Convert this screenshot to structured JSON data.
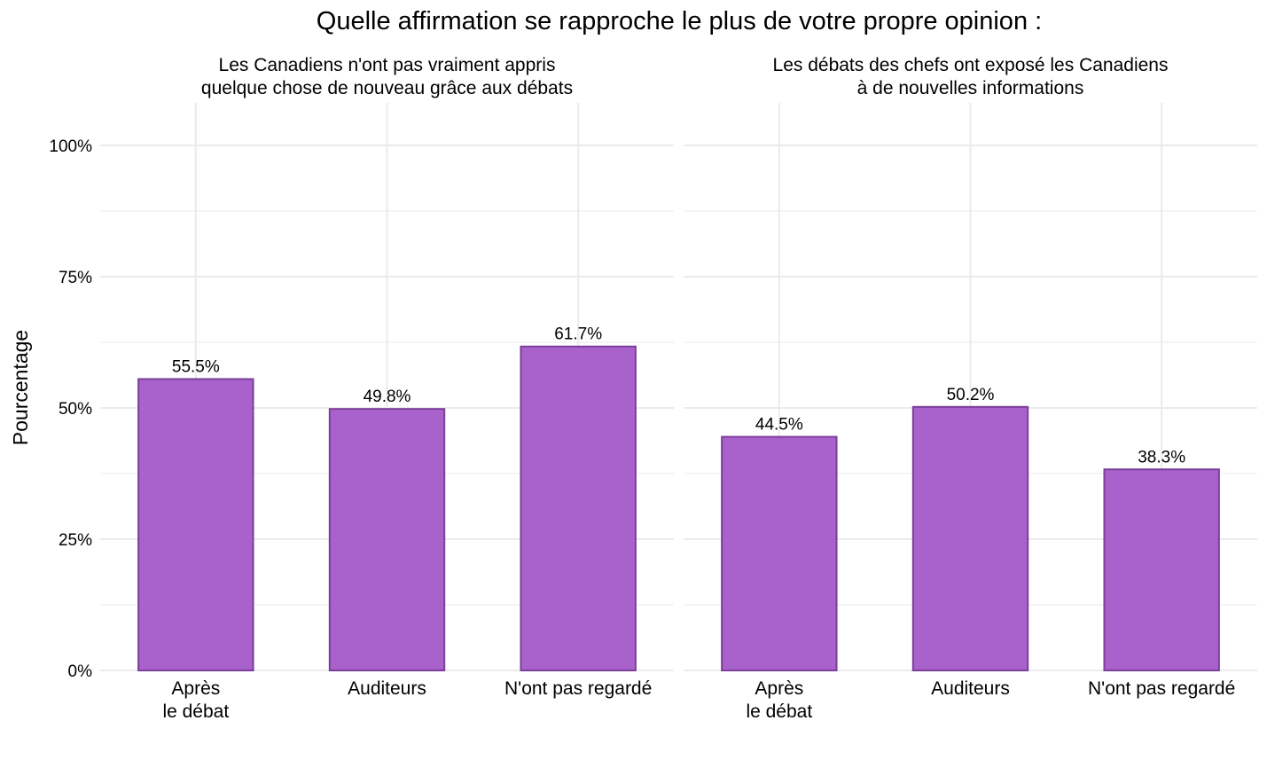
{
  "chart_data": [
    {
      "type": "bar",
      "title": "Quelle affirmation se rapproche le plus de votre propre opinion :",
      "ylabel": "Pourcentage",
      "ylim": [
        0,
        100
      ],
      "yticks": [
        "0%",
        "25%",
        "50%",
        "75%",
        "100%"
      ],
      "grid": true,
      "colors": {
        "fill": "#a962cc",
        "stroke": "#7b3f9a",
        "grid": "#ebebeb"
      },
      "facets": [
        {
          "title_lines": [
            "Les Canadiens n'ont pas vraiment appris",
            "quelque chose de nouveau grâce aux débats"
          ],
          "categories": [
            [
              "Après",
              "le débat"
            ],
            [
              "Auditeurs"
            ],
            [
              "N'ont pas regardé"
            ]
          ],
          "values": [
            55.5,
            49.8,
            61.7
          ],
          "labels": [
            "55.5%",
            "49.8%",
            "61.7%"
          ]
        },
        {
          "title_lines": [
            "Les débats des chefs ont exposé les Canadiens",
            "à de nouvelles informations"
          ],
          "categories": [
            [
              "Après",
              "le débat"
            ],
            [
              "Auditeurs"
            ],
            [
              "N'ont pas regardé"
            ]
          ],
          "values": [
            44.5,
            50.2,
            38.3
          ],
          "labels": [
            "44.5%",
            "50.2%",
            "38.3%"
          ]
        }
      ]
    }
  ]
}
